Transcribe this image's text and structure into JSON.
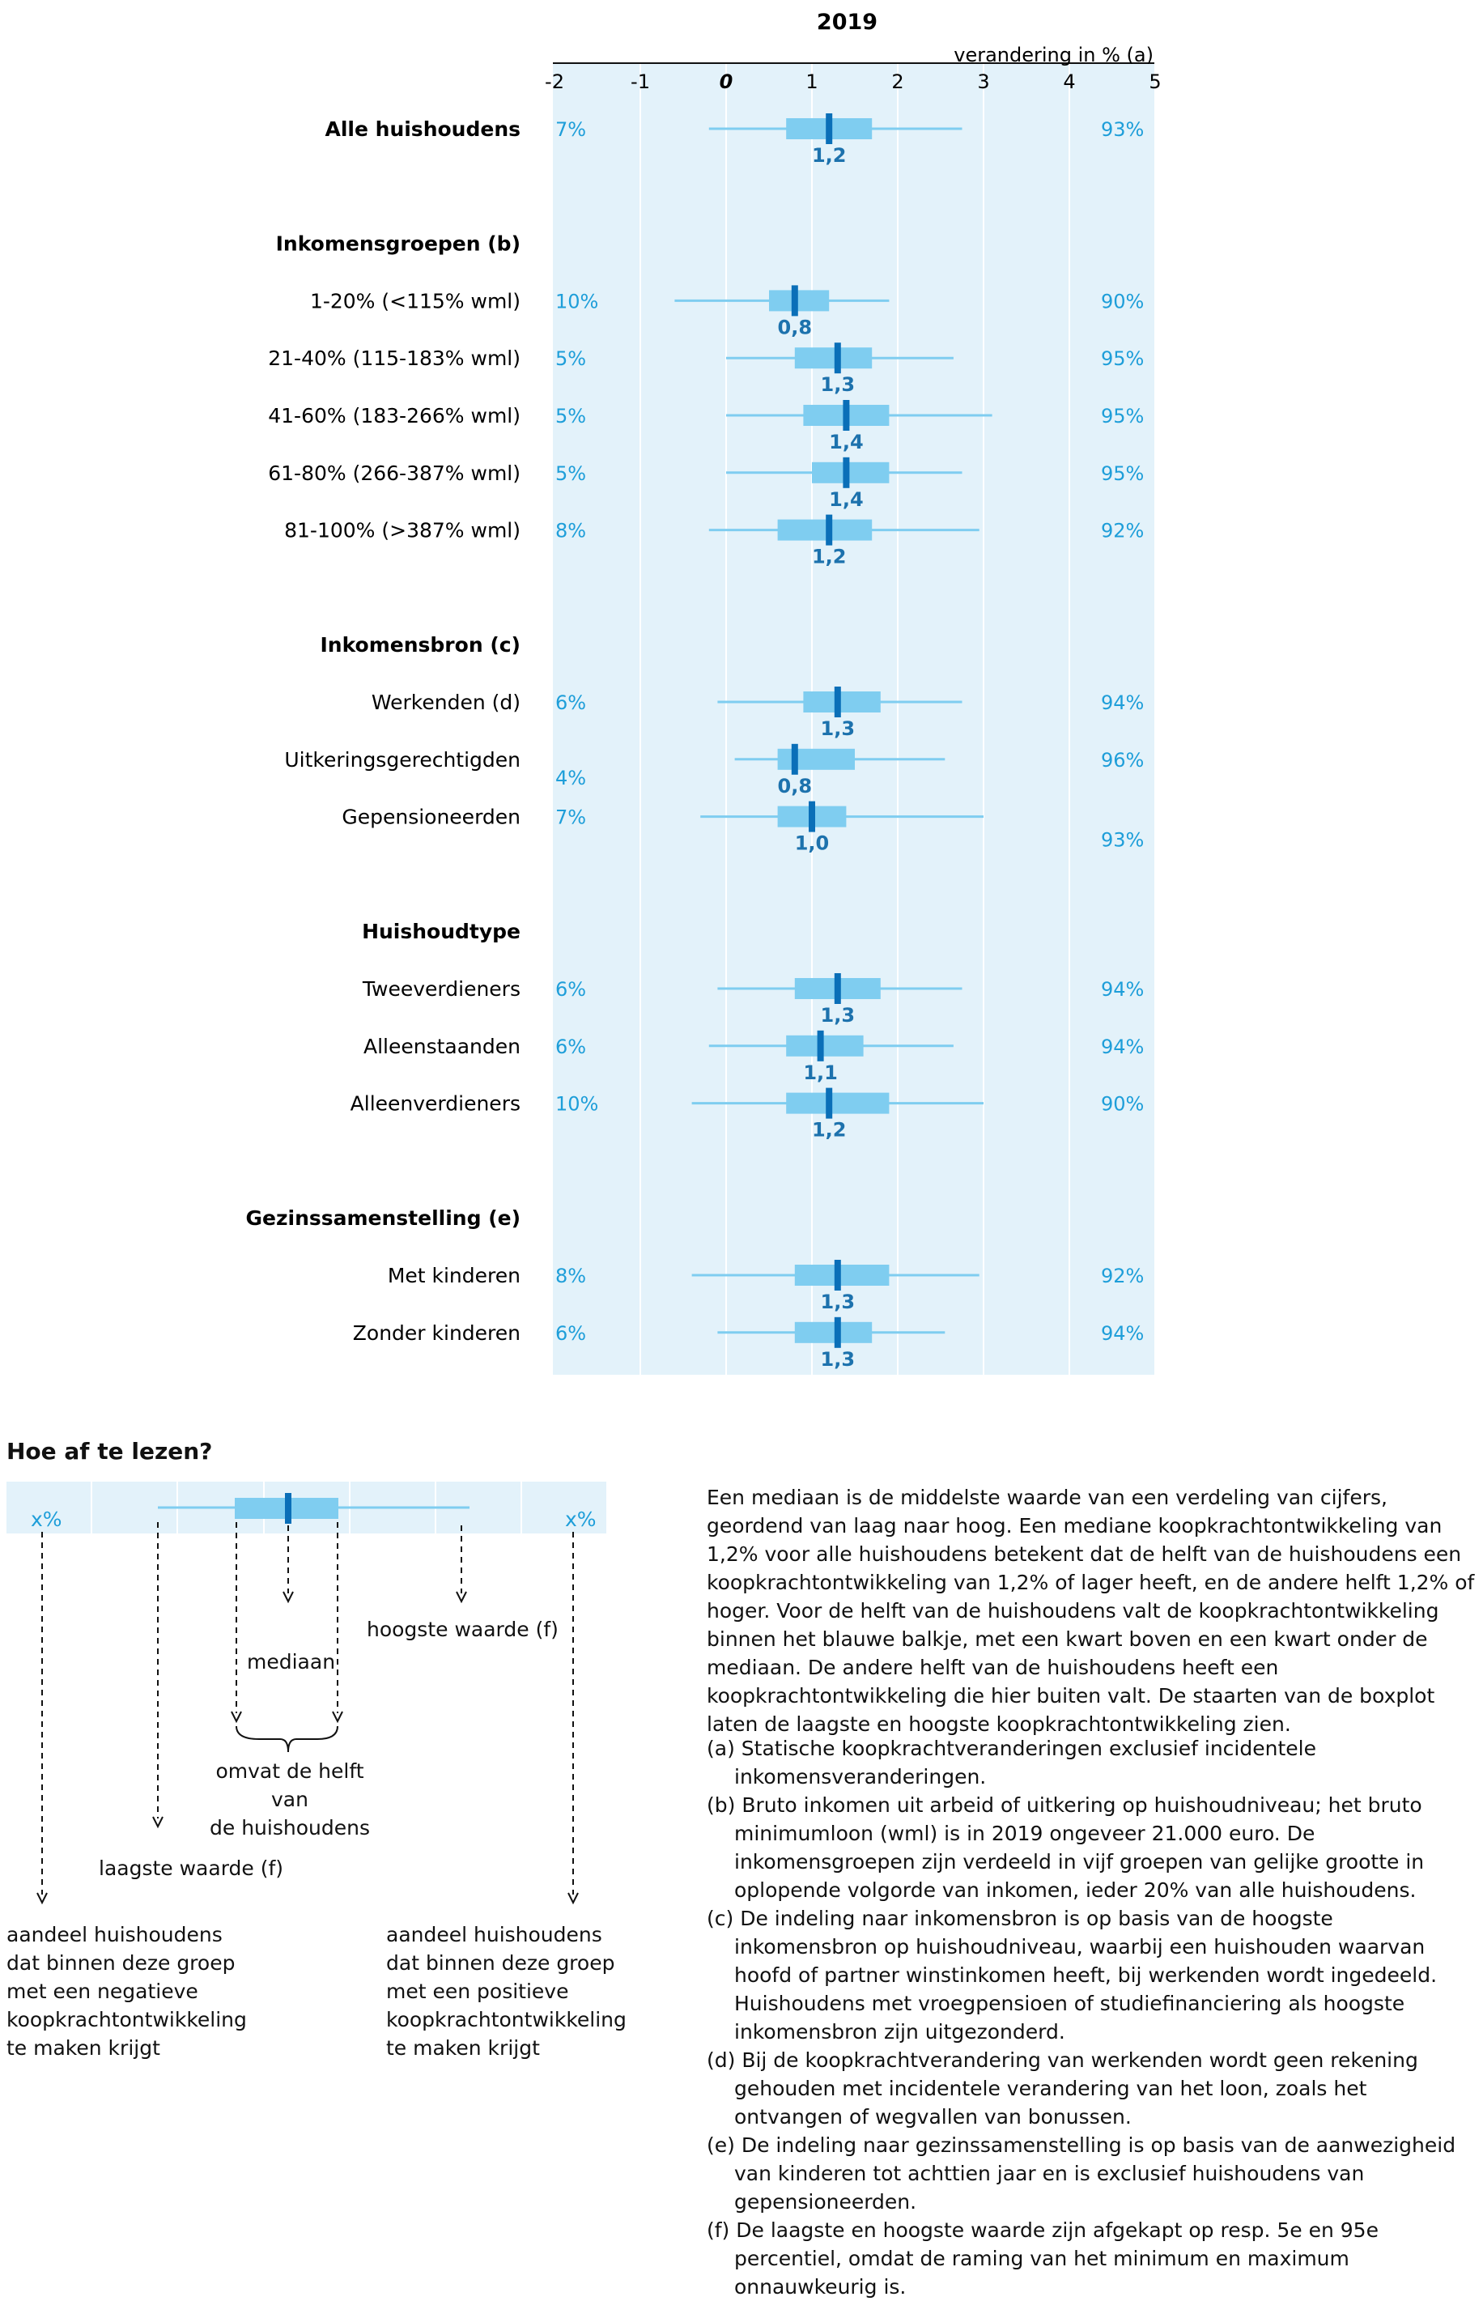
{
  "chart_data": {
    "type": "boxplot",
    "title": "2019",
    "axis_label": "verandering in % (a)",
    "ticks": [
      "-2",
      "-1",
      "0",
      "1",
      "2",
      "3",
      "4",
      "5"
    ],
    "xlim": [
      -2,
      5
    ],
    "colors": {
      "panel": "#e3f2fa",
      "box": "#7fcdf0",
      "whisker": "#7fcdf0",
      "median": "#0a6fb8",
      "pct": "#1e9ed9",
      "median_label": "#1d72ad"
    },
    "groups": [
      {
        "heading": null,
        "rows": [
          {
            "label": "Alle huishoudens",
            "bold": true,
            "min": -0.2,
            "q1": 0.7,
            "median": 1.2,
            "q3": 1.7,
            "max": 2.75,
            "median_label": "1,2",
            "neg": "7%",
            "pos": "93%"
          }
        ]
      },
      {
        "heading": "Inkomensgroepen (b)",
        "rows": [
          {
            "label": "1-20% (<115% wml)",
            "min": -0.6,
            "q1": 0.5,
            "median": 0.8,
            "q3": 1.2,
            "max": 1.9,
            "median_label": "0,8",
            "neg": "10%",
            "pos": "90%"
          },
          {
            "label": "21-40% (115-183% wml)",
            "min": 0.0,
            "q1": 0.8,
            "median": 1.3,
            "q3": 1.7,
            "max": 2.65,
            "median_label": "1,3",
            "neg": "5%",
            "pos": "95%"
          },
          {
            "label": "41-60% (183-266% wml)",
            "min": 0.0,
            "q1": 0.9,
            "median": 1.4,
            "q3": 1.9,
            "max": 3.1,
            "median_label": "1,4",
            "neg": "5%",
            "pos": "95%"
          },
          {
            "label": "61-80% (266-387% wml)",
            "min": 0.0,
            "q1": 1.0,
            "median": 1.4,
            "q3": 1.9,
            "max": 2.75,
            "median_label": "1,4",
            "neg": "5%",
            "pos": "95%"
          },
          {
            "label": "81-100% (>387% wml)",
            "min": -0.2,
            "q1": 0.6,
            "median": 1.2,
            "q3": 1.7,
            "max": 2.95,
            "median_label": "1,2",
            "neg": "8%",
            "pos": "92%"
          }
        ]
      },
      {
        "heading": "Inkomensbron (c)",
        "rows": [
          {
            "label": "Werkenden (d)",
            "min": -0.1,
            "q1": 0.9,
            "median": 1.3,
            "q3": 1.8,
            "max": 2.75,
            "median_label": "1,3",
            "neg": "6%",
            "pos": "94%"
          },
          {
            "label": "Uitkeringsgerechtigden",
            "min": 0.1,
            "q1": 0.6,
            "median": 0.8,
            "q3": 1.5,
            "max": 2.55,
            "median_label": "0,8",
            "neg": "4%",
            "pos": "96%",
            "neg_low": true
          },
          {
            "label": "Gepensioneerden",
            "min": -0.3,
            "q1": 0.6,
            "median": 1.0,
            "q3": 1.4,
            "max": 3.0,
            "median_label": "1,0",
            "neg": "7%",
            "pos": "93%",
            "pos_low": true
          }
        ]
      },
      {
        "heading": "Huishoudtype",
        "rows": [
          {
            "label": "Tweeverdieners",
            "min": -0.1,
            "q1": 0.8,
            "median": 1.3,
            "q3": 1.8,
            "max": 2.75,
            "median_label": "1,3",
            "neg": "6%",
            "pos": "94%"
          },
          {
            "label": "Alleenstaanden",
            "min": -0.2,
            "q1": 0.7,
            "median": 1.1,
            "q3": 1.6,
            "max": 2.65,
            "median_label": "1,1",
            "neg": "6%",
            "pos": "94%"
          },
          {
            "label": "Alleenverdieners",
            "min": -0.4,
            "q1": 0.7,
            "median": 1.2,
            "q3": 1.9,
            "max": 3.0,
            "median_label": "1,2",
            "neg": "10%",
            "pos": "90%"
          }
        ]
      },
      {
        "heading": "Gezinssamenstelling (e)",
        "rows": [
          {
            "label": "Met kinderen",
            "min": -0.4,
            "q1": 0.8,
            "median": 1.3,
            "q3": 1.9,
            "max": 2.95,
            "median_label": "1,3",
            "neg": "8%",
            "pos": "92%"
          },
          {
            "label": "Zonder kinderen",
            "min": -0.1,
            "q1": 0.8,
            "median": 1.3,
            "q3": 1.7,
            "max": 2.55,
            "median_label": "1,3",
            "neg": "6%",
            "pos": "94%"
          }
        ]
      }
    ]
  },
  "legend": {
    "title": "Hoe af te lezen?",
    "pct_left": "x%",
    "pct_right": "x%",
    "mediaan": "mediaan",
    "hoogste": "hoogste waarde (f)",
    "omvat_1": "omvat de helft van",
    "omvat_2": "de huishoudens",
    "laagste": "laagste waarde (f)",
    "neg_text": [
      "aandeel huishoudens",
      "dat binnen deze groep",
      "met een negatieve",
      "koopkrachtontwikkeling",
      "te maken krijgt"
    ],
    "pos_text": [
      "aandeel huishoudens",
      "dat binnen deze groep",
      "met een positieve",
      "koopkrachtontwikkeling",
      "te maken krijgt"
    ]
  },
  "explanation": "Een mediaan is de middelste waarde van een verdeling van cijfers, geordend van laag naar hoog. Een mediane koopkrachtontwikkeling van 1,2% voor alle huishoudens betekent dat de helft van de huishoudens een koopkrachtontwikkeling van 1,2% of lager heeft, en de andere helft 1,2% of hoger. Voor de helft van de huishoudens valt de koopkrachtontwikkeling binnen het blauwe balkje, met een kwart boven en een kwart onder de mediaan. De andere helft van de huishoudens heeft een koopkrachtontwikkeling die hier buiten valt. De staarten van de boxplot laten de laagste en hoogste koopkrachtontwikkeling zien.",
  "notes": [
    "(a) Statische koopkrachtveranderingen exclusief incidentele inkomensveranderingen.",
    "(b) Bruto inkomen uit arbeid of uitkering op huishoudniveau; het bruto minimumloon (wml) is in 2019 ongeveer 21.000 euro. De inkomensgroepen zijn verdeeld in vijf groepen van gelijke grootte in oplopende volgorde van inkomen, ieder 20% van alle huishoudens.",
    "(c) De indeling naar inkomensbron is op basis van de hoogste inkomensbron op huishoudniveau, waarbij een huishouden waarvan hoofd of partner winstinkomen heeft, bij werkenden wordt ingedeeld. Huishoudens met vroegpensioen of studiefinanciering als hoogste inkomensbron zijn uitgezonderd.",
    "(d) Bij de koopkrachtverandering van werkenden wordt geen rekening gehouden met incidentele verandering van het loon, zoals het ontvangen of wegvallen van bonussen.",
    "(e) De indeling naar gezinssamenstelling is op basis van de aanwezigheid van kinderen tot achttien jaar en is exclusief huishoudens van gepensioneerden.",
    "(f) De laagste en hoogste waarde zijn afgekapt op resp. 5e en 95e percentiel, omdat de raming van het minimum en maximum onnauwkeurig is."
  ]
}
